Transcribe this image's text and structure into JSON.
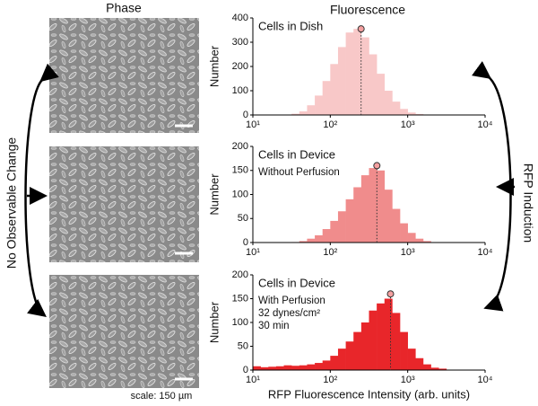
{
  "labels": {
    "phase_title": "Phase",
    "fluorescence_title": "Fluorescence",
    "left_label": "No Observable Change",
    "right_label": "RFP Induction",
    "scale_label": "scale: 150 µm"
  },
  "chart_data": [
    {
      "type": "histogram",
      "annotations": [
        "Cells in Dish"
      ],
      "ylabel": "Number",
      "color": "#f8c8c8",
      "xscale": "log",
      "bins": [
        10,
        12.59,
        15.85,
        19.95,
        25.12,
        31.62,
        39.81,
        50.12,
        63.1,
        79.43,
        100,
        125.9,
        158.5,
        199.5,
        251.2,
        316.2,
        398.1,
        501.2,
        631,
        794.3,
        1000,
        1259,
        1585,
        1995,
        2512,
        3162,
        3981,
        5012,
        6310,
        7943,
        10000
      ],
      "values": [
        0,
        0,
        0,
        0,
        0,
        5,
        15,
        40,
        80,
        140,
        210,
        280,
        340,
        355,
        320,
        250,
        170,
        100,
        55,
        25,
        10,
        4,
        0,
        0,
        0,
        0,
        0,
        0,
        0,
        0
      ],
      "marker_x": 250,
      "marker_y": 355,
      "xlim": [
        10,
        10000
      ],
      "xticks": [
        {
          "value": 10,
          "label": "10¹"
        },
        {
          "value": 100,
          "label": "10²"
        },
        {
          "value": 1000,
          "label": "10³"
        },
        {
          "value": 10000,
          "label": "10⁴"
        }
      ],
      "ylim": [
        0,
        400
      ],
      "yticks": [
        0,
        100,
        200,
        300,
        400
      ]
    },
    {
      "type": "histogram",
      "annotations": [
        "Cells in Device",
        "Without Perfusion"
      ],
      "ylabel": "Number",
      "color": "#f08c8c",
      "xscale": "log",
      "bins": [
        10,
        12.59,
        15.85,
        19.95,
        25.12,
        31.62,
        39.81,
        50.12,
        63.1,
        79.43,
        100,
        125.9,
        158.5,
        199.5,
        251.2,
        316.2,
        398.1,
        501.2,
        631,
        794.3,
        1000,
        1259,
        1585,
        1995,
        2512,
        3162,
        3981,
        5012,
        6310,
        7943,
        10000
      ],
      "values": [
        0,
        0,
        0,
        0,
        0,
        1,
        3,
        8,
        15,
        28,
        45,
        65,
        90,
        115,
        140,
        155,
        150,
        110,
        70,
        40,
        20,
        8,
        3,
        0,
        0,
        0,
        0,
        0,
        0,
        0
      ],
      "marker_x": 400,
      "marker_y": 160,
      "xlim": [
        10,
        10000
      ],
      "xticks": [
        {
          "value": 10,
          "label": "10¹"
        },
        {
          "value": 100,
          "label": "10²"
        },
        {
          "value": 1000,
          "label": "10³"
        },
        {
          "value": 10000,
          "label": "10⁴"
        }
      ],
      "ylim": [
        0,
        200
      ],
      "yticks": [
        0,
        50,
        100,
        150,
        200
      ]
    },
    {
      "type": "histogram",
      "annotations": [
        "Cells in Device",
        "With Perfusion",
        "32 dynes/cm²",
        "30 min"
      ],
      "ylabel": "Number",
      "xlabel": "RFP Fluorescence Intensity (arb. units)",
      "color": "#e8262a",
      "xscale": "log",
      "bins": [
        10,
        12.59,
        15.85,
        19.95,
        25.12,
        31.62,
        39.81,
        50.12,
        63.1,
        79.43,
        100,
        125.9,
        158.5,
        199.5,
        251.2,
        316.2,
        398.1,
        501.2,
        631,
        794.3,
        1000,
        1259,
        1585,
        1995,
        2512,
        3162,
        3981,
        5012,
        6310,
        7943,
        10000
      ],
      "values": [
        8,
        6,
        7,
        8,
        10,
        9,
        10,
        12,
        15,
        20,
        30,
        45,
        60,
        80,
        100,
        125,
        140,
        150,
        120,
        80,
        45,
        25,
        12,
        5,
        3,
        0,
        0,
        0,
        0,
        0
      ],
      "marker_x": 600,
      "marker_y": 160,
      "xlim": [
        10,
        10000
      ],
      "xticks": [
        {
          "value": 10,
          "label": "10¹"
        },
        {
          "value": 100,
          "label": "10²"
        },
        {
          "value": 1000,
          "label": "10³"
        },
        {
          "value": 10000,
          "label": "10⁴"
        }
      ],
      "ylim": [
        0,
        200
      ],
      "yticks": [
        0,
        50,
        100,
        150,
        200
      ]
    }
  ]
}
